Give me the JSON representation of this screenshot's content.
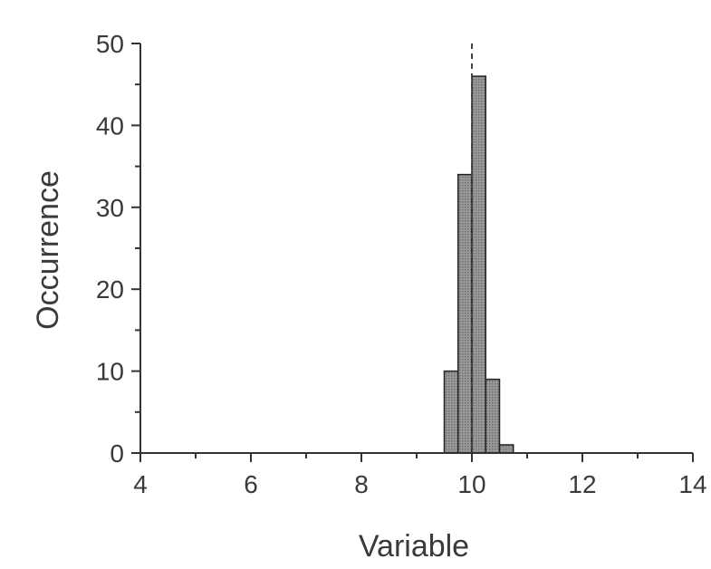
{
  "chart_data": {
    "type": "bar",
    "subtype": "histogram",
    "xlabel": "Variable",
    "ylabel": "Occurrence",
    "xlim": [
      4,
      14
    ],
    "ylim": [
      0,
      50
    ],
    "x_ticks": [
      4,
      6,
      8,
      10,
      12,
      14
    ],
    "y_ticks": [
      0,
      10,
      20,
      30,
      40,
      50
    ],
    "bin_width": 0.25,
    "bins": [
      {
        "start": 9.5,
        "end": 9.75,
        "value": 10
      },
      {
        "start": 9.75,
        "end": 10.0,
        "value": 34
      },
      {
        "start": 10.0,
        "end": 10.25,
        "value": 46
      },
      {
        "start": 10.25,
        "end": 10.5,
        "value": 9
      },
      {
        "start": 10.5,
        "end": 10.75,
        "value": 1
      }
    ],
    "reference_line_x": 10,
    "reference_line_style": "dashed",
    "bar_color": "#8f8f8f",
    "grid": false,
    "legend": "none"
  }
}
